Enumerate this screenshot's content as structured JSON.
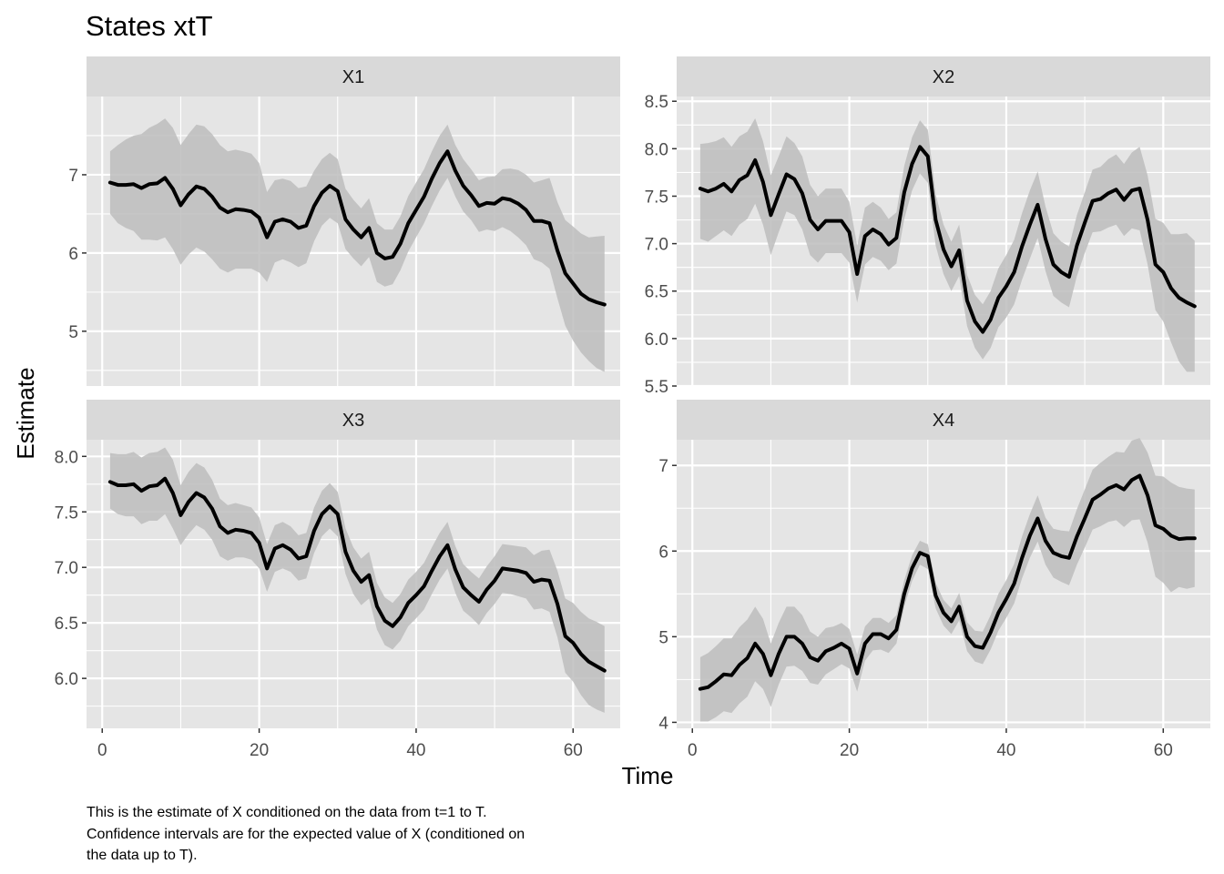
{
  "title": "States xtT",
  "xlabel": "Time",
  "ylabel": "Estimate",
  "caption": {
    "lines": [
      "This is the estimate of X conditioned on the data from t=1 to T.",
      "Confidence intervals are for the expected value of X (conditioned on",
      "the data up to T)."
    ]
  },
  "colors": {
    "panel_bg": "#e5e5e5",
    "strip_bg": "#d9d9d9",
    "gridline": "#ffffff",
    "ribbon": "#bdbdbd",
    "line": "#000000"
  },
  "chart_data": [
    {
      "type": "line",
      "panel": "X1",
      "xlim": [
        -2,
        66
      ],
      "ylim": [
        4.3,
        8.0
      ],
      "x_ticks": [
        0,
        20,
        40,
        60
      ],
      "y_ticks": [
        5,
        6,
        7
      ],
      "y_tick_labels": [
        "5",
        "6",
        "7"
      ],
      "band": "confidence interval",
      "t": [
        1,
        2,
        3,
        4,
        5,
        6,
        7,
        8,
        9,
        10,
        11,
        12,
        13,
        14,
        15,
        16,
        17,
        18,
        19,
        20,
        21,
        22,
        23,
        24,
        25,
        26,
        27,
        28,
        29,
        30,
        31,
        32,
        33,
        34,
        35,
        36,
        37,
        38,
        39,
        40,
        41,
        42,
        43,
        44,
        45,
        46,
        47,
        48,
        49,
        50,
        51,
        52,
        53,
        54,
        55,
        56,
        57,
        58,
        59,
        60,
        61,
        62,
        63,
        64
      ],
      "estimate": [
        6.9,
        6.87,
        6.87,
        6.88,
        6.83,
        6.88,
        6.89,
        6.96,
        6.82,
        6.61,
        6.75,
        6.85,
        6.82,
        6.72,
        6.58,
        6.52,
        6.56,
        6.55,
        6.53,
        6.45,
        6.2,
        6.4,
        6.43,
        6.4,
        6.32,
        6.35,
        6.6,
        6.77,
        6.86,
        6.79,
        6.43,
        6.3,
        6.2,
        6.32,
        6.0,
        5.93,
        5.95,
        6.12,
        6.38,
        6.55,
        6.72,
        6.95,
        7.15,
        7.3,
        7.05,
        6.86,
        6.74,
        6.6,
        6.64,
        6.63,
        6.7,
        6.68,
        6.63,
        6.55,
        6.41,
        6.41,
        6.38,
        6.03,
        5.74,
        5.61,
        5.48,
        5.41,
        5.37,
        5.34
      ],
      "lower": [
        6.5,
        6.38,
        6.32,
        6.28,
        6.17,
        6.17,
        6.16,
        6.2,
        6.05,
        5.85,
        5.98,
        6.07,
        6.02,
        5.92,
        5.8,
        5.75,
        5.8,
        5.8,
        5.8,
        5.75,
        5.63,
        5.88,
        5.92,
        5.88,
        5.82,
        5.87,
        6.15,
        6.35,
        6.45,
        6.38,
        6.05,
        5.93,
        5.83,
        5.95,
        5.63,
        5.57,
        5.6,
        5.78,
        6.02,
        6.2,
        6.38,
        6.6,
        6.8,
        6.96,
        6.72,
        6.53,
        6.42,
        6.27,
        6.3,
        6.28,
        6.33,
        6.28,
        6.2,
        6.1,
        5.92,
        5.88,
        5.8,
        5.42,
        5.07,
        4.88,
        4.73,
        4.62,
        4.53,
        4.48
      ],
      "upper": [
        7.3,
        7.38,
        7.45,
        7.5,
        7.52,
        7.6,
        7.65,
        7.72,
        7.6,
        7.38,
        7.52,
        7.64,
        7.62,
        7.52,
        7.38,
        7.3,
        7.32,
        7.3,
        7.27,
        7.15,
        6.78,
        6.93,
        6.95,
        6.92,
        6.83,
        6.85,
        7.05,
        7.2,
        7.28,
        7.2,
        6.82,
        6.68,
        6.57,
        6.7,
        6.38,
        6.3,
        6.3,
        6.47,
        6.73,
        6.9,
        7.07,
        7.3,
        7.5,
        7.64,
        7.38,
        7.2,
        7.07,
        6.93,
        6.97,
        6.98,
        7.07,
        7.08,
        7.06,
        7.0,
        6.9,
        6.93,
        6.96,
        6.65,
        6.42,
        6.34,
        6.25,
        6.2,
        6.21,
        6.22
      ]
    },
    {
      "type": "line",
      "panel": "X2",
      "xlim": [
        -2,
        66
      ],
      "ylim": [
        5.5,
        8.55
      ],
      "x_ticks": [
        0,
        20,
        40,
        60
      ],
      "y_ticks": [
        5.5,
        6.0,
        6.5,
        7.0,
        7.5,
        8.0,
        8.5
      ],
      "y_tick_labels": [
        "5.5",
        "6.0",
        "6.5",
        "7.0",
        "7.5",
        "8.0",
        "8.5"
      ],
      "band": "confidence interval",
      "t": [
        1,
        2,
        3,
        4,
        5,
        6,
        7,
        8,
        9,
        10,
        11,
        12,
        13,
        14,
        15,
        16,
        17,
        18,
        19,
        20,
        21,
        22,
        23,
        24,
        25,
        26,
        27,
        28,
        29,
        30,
        31,
        32,
        33,
        34,
        35,
        36,
        37,
        38,
        39,
        40,
        41,
        42,
        43,
        44,
        45,
        46,
        47,
        48,
        49,
        50,
        51,
        52,
        53,
        54,
        55,
        56,
        57,
        58,
        59,
        60,
        61,
        62,
        63,
        64
      ],
      "estimate": [
        7.58,
        7.55,
        7.58,
        7.63,
        7.55,
        7.67,
        7.72,
        7.88,
        7.65,
        7.3,
        7.52,
        7.73,
        7.68,
        7.53,
        7.25,
        7.15,
        7.24,
        7.24,
        7.24,
        7.12,
        6.68,
        7.08,
        7.15,
        7.1,
        6.99,
        7.06,
        7.54,
        7.84,
        8.02,
        7.92,
        7.25,
        6.94,
        6.76,
        6.93,
        6.4,
        6.18,
        6.07,
        6.2,
        6.43,
        6.55,
        6.7,
        6.97,
        7.2,
        7.41,
        7.05,
        6.78,
        6.7,
        6.65,
        6.98,
        7.22,
        7.45,
        7.47,
        7.53,
        7.57,
        7.46,
        7.56,
        7.58,
        7.25,
        6.78,
        6.7,
        6.53,
        6.43,
        6.38,
        6.34
      ],
      "lower": [
        7.05,
        7.02,
        7.08,
        7.14,
        7.08,
        7.2,
        7.26,
        7.42,
        7.2,
        6.88,
        7.12,
        7.34,
        7.3,
        7.15,
        6.88,
        6.8,
        6.9,
        6.9,
        6.9,
        6.8,
        6.38,
        6.78,
        6.86,
        6.82,
        6.72,
        6.79,
        7.26,
        7.56,
        7.74,
        7.64,
        6.98,
        6.68,
        6.5,
        6.66,
        6.13,
        5.9,
        5.78,
        5.9,
        6.12,
        6.22,
        6.36,
        6.62,
        6.84,
        7.06,
        6.71,
        6.45,
        6.38,
        6.33,
        6.66,
        6.9,
        7.12,
        7.13,
        7.17,
        7.2,
        7.08,
        7.16,
        7.14,
        6.78,
        6.3,
        6.18,
        5.96,
        5.76,
        5.65,
        5.65
      ],
      "upper": [
        8.05,
        8.06,
        8.08,
        8.12,
        8.02,
        8.13,
        8.18,
        8.32,
        8.08,
        7.72,
        7.92,
        8.13,
        8.06,
        7.92,
        7.62,
        7.5,
        7.58,
        7.58,
        7.58,
        7.44,
        6.98,
        7.38,
        7.44,
        7.38,
        7.26,
        7.33,
        7.82,
        8.12,
        8.3,
        8.2,
        7.52,
        7.2,
        7.02,
        7.2,
        6.67,
        6.46,
        6.36,
        6.5,
        6.74,
        6.88,
        7.04,
        7.32,
        7.56,
        7.76,
        7.39,
        7.11,
        7.02,
        6.97,
        7.3,
        7.54,
        7.78,
        7.81,
        7.89,
        7.94,
        7.84,
        7.96,
        8.02,
        7.72,
        7.26,
        7.22,
        7.1,
        7.1,
        7.11,
        7.03
      ]
    },
    {
      "type": "line",
      "panel": "X3",
      "xlim": [
        -2,
        66
      ],
      "ylim": [
        5.55,
        8.15
      ],
      "x_ticks": [
        0,
        20,
        40,
        60
      ],
      "y_ticks": [
        6.0,
        6.5,
        7.0,
        7.5,
        8.0
      ],
      "y_tick_labels": [
        "6.0",
        "6.5",
        "7.0",
        "7.5",
        "8.0"
      ],
      "band": "confidence interval",
      "t": [
        1,
        2,
        3,
        4,
        5,
        6,
        7,
        8,
        9,
        10,
        11,
        12,
        13,
        14,
        15,
        16,
        17,
        18,
        19,
        20,
        21,
        22,
        23,
        24,
        25,
        26,
        27,
        28,
        29,
        30,
        31,
        32,
        33,
        34,
        35,
        36,
        37,
        38,
        39,
        40,
        41,
        42,
        43,
        44,
        45,
        46,
        47,
        48,
        49,
        50,
        51,
        52,
        53,
        54,
        55,
        56,
        57,
        58,
        59,
        60,
        61,
        62,
        63,
        64
      ],
      "estimate": [
        7.77,
        7.74,
        7.74,
        7.75,
        7.69,
        7.73,
        7.74,
        7.8,
        7.67,
        7.47,
        7.59,
        7.67,
        7.63,
        7.53,
        7.37,
        7.31,
        7.34,
        7.33,
        7.31,
        7.22,
        6.99,
        7.17,
        7.2,
        7.16,
        7.08,
        7.1,
        7.33,
        7.48,
        7.55,
        7.48,
        7.14,
        6.97,
        6.87,
        6.93,
        6.65,
        6.52,
        6.47,
        6.55,
        6.68,
        6.75,
        6.83,
        6.97,
        7.1,
        7.2,
        6.98,
        6.82,
        6.75,
        6.69,
        6.8,
        6.88,
        6.99,
        6.98,
        6.97,
        6.95,
        6.87,
        6.89,
        6.88,
        6.67,
        6.38,
        6.32,
        6.22,
        6.15,
        6.11,
        6.07
      ],
      "lower": [
        7.53,
        7.48,
        7.46,
        7.46,
        7.39,
        7.42,
        7.42,
        7.48,
        7.35,
        7.2,
        7.3,
        7.38,
        7.34,
        7.25,
        7.1,
        7.06,
        7.09,
        7.09,
        7.07,
        6.99,
        6.78,
        6.96,
        6.99,
        6.96,
        6.88,
        6.9,
        7.13,
        7.28,
        7.35,
        7.28,
        6.94,
        6.76,
        6.66,
        6.72,
        6.44,
        6.3,
        6.26,
        6.34,
        6.47,
        6.54,
        6.62,
        6.76,
        6.89,
        6.99,
        6.77,
        6.61,
        6.55,
        6.48,
        6.59,
        6.67,
        6.77,
        6.76,
        6.74,
        6.72,
        6.62,
        6.63,
        6.6,
        6.37,
        6.05,
        5.97,
        5.85,
        5.76,
        5.72,
        5.69
      ],
      "upper": [
        8.03,
        8.02,
        8.02,
        8.04,
        7.99,
        8.03,
        8.04,
        8.08,
        7.97,
        7.74,
        7.86,
        7.94,
        7.9,
        7.79,
        7.62,
        7.56,
        7.58,
        7.56,
        7.54,
        7.45,
        7.21,
        7.38,
        7.41,
        7.37,
        7.29,
        7.31,
        7.54,
        7.69,
        7.76,
        7.68,
        7.35,
        7.18,
        7.08,
        7.14,
        6.86,
        6.73,
        6.68,
        6.76,
        6.89,
        6.96,
        7.04,
        7.18,
        7.31,
        7.41,
        7.19,
        7.03,
        6.96,
        6.9,
        7.01,
        7.1,
        7.21,
        7.2,
        7.19,
        7.18,
        7.11,
        7.15,
        7.16,
        6.97,
        6.72,
        6.68,
        6.6,
        6.54,
        6.51,
        6.47
      ]
    },
    {
      "type": "line",
      "panel": "X4",
      "xlim": [
        -2,
        66
      ],
      "ylim": [
        3.93,
        7.3
      ],
      "x_ticks": [
        0,
        20,
        40,
        60
      ],
      "y_ticks": [
        4,
        5,
        6,
        7
      ],
      "y_tick_labels": [
        "4",
        "5",
        "6",
        "7"
      ],
      "band": "confidence interval",
      "t": [
        1,
        2,
        3,
        4,
        5,
        6,
        7,
        8,
        9,
        10,
        11,
        12,
        13,
        14,
        15,
        16,
        17,
        18,
        19,
        20,
        21,
        22,
        23,
        24,
        25,
        26,
        27,
        28,
        29,
        30,
        31,
        32,
        33,
        34,
        35,
        36,
        37,
        38,
        39,
        40,
        41,
        42,
        43,
        44,
        45,
        46,
        47,
        48,
        49,
        50,
        51,
        52,
        53,
        54,
        55,
        56,
        57,
        58,
        59,
        60,
        61,
        62,
        63,
        64
      ],
      "estimate": [
        4.39,
        4.41,
        4.48,
        4.56,
        4.55,
        4.67,
        4.75,
        4.92,
        4.8,
        4.55,
        4.8,
        5.0,
        5.0,
        4.92,
        4.76,
        4.72,
        4.83,
        4.87,
        4.92,
        4.86,
        4.57,
        4.92,
        5.03,
        5.03,
        4.98,
        5.08,
        5.5,
        5.8,
        5.98,
        5.94,
        5.48,
        5.28,
        5.18,
        5.35,
        5.0,
        4.89,
        4.87,
        5.05,
        5.28,
        5.44,
        5.62,
        5.92,
        6.18,
        6.38,
        6.12,
        5.98,
        5.94,
        5.92,
        6.17,
        6.38,
        6.6,
        6.66,
        6.73,
        6.77,
        6.72,
        6.83,
        6.88,
        6.65,
        6.3,
        6.26,
        6.18,
        6.14,
        6.15,
        6.15
      ],
      "lower": [
        4.01,
        4.01,
        4.06,
        4.13,
        4.11,
        4.22,
        4.3,
        4.48,
        4.39,
        4.18,
        4.44,
        4.65,
        4.66,
        4.6,
        4.46,
        4.44,
        4.56,
        4.62,
        4.68,
        4.63,
        4.36,
        4.72,
        4.84,
        4.85,
        4.81,
        4.92,
        5.35,
        5.65,
        5.84,
        5.79,
        5.33,
        5.13,
        5.03,
        5.19,
        4.83,
        4.71,
        4.68,
        4.85,
        5.07,
        5.22,
        5.39,
        5.68,
        5.92,
        6.11,
        5.84,
        5.69,
        5.64,
        5.6,
        5.84,
        6.04,
        6.25,
        6.29,
        6.34,
        6.36,
        6.28,
        6.36,
        6.37,
        6.1,
        5.7,
        5.63,
        5.52,
        5.58,
        5.56,
        5.58
      ],
      "upper": [
        4.76,
        4.81,
        4.89,
        4.98,
        4.98,
        5.11,
        5.2,
        5.35,
        5.21,
        4.92,
        5.16,
        5.35,
        5.35,
        5.25,
        5.06,
        5.0,
        5.1,
        5.12,
        5.16,
        5.09,
        4.79,
        5.12,
        5.22,
        5.22,
        5.16,
        5.25,
        5.66,
        5.95,
        6.12,
        6.08,
        5.63,
        5.43,
        5.33,
        5.51,
        5.17,
        5.07,
        5.06,
        5.25,
        5.5,
        5.66,
        5.85,
        6.17,
        6.43,
        6.65,
        6.39,
        6.26,
        6.24,
        6.23,
        6.49,
        6.72,
        6.95,
        7.03,
        7.1,
        7.16,
        7.15,
        7.29,
        7.32,
        7.15,
        6.88,
        6.87,
        6.8,
        6.75,
        6.73,
        6.72
      ]
    }
  ]
}
